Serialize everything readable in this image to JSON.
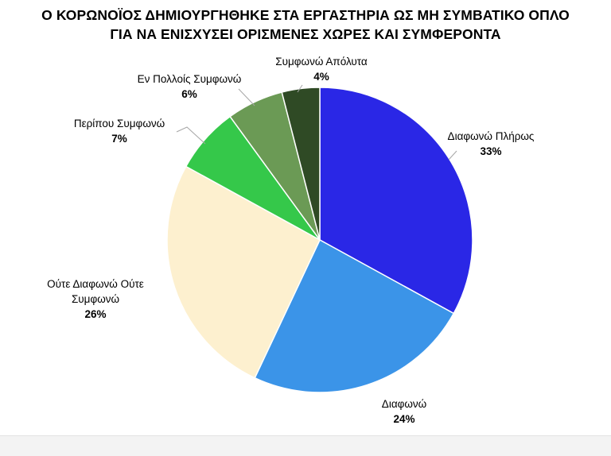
{
  "chart_data": {
    "type": "pie",
    "title_lines": [
      "Ο ΚΟΡΩΝΟΪΟΣ ΔΗΜΙΟΥΡΓΗΘΗΚΕ ΣΤΑ ΕΡΓΑΣΤΗΡΙΑ ΩΣ ΜΗ ΣΥΜΒΑΤΙΚΟ ΟΠΛΟ",
      "ΓΙΑ ΝΑ ΕΝΙΣΧΥΣΕΙ ΟΡΙΣΜΕΝΕΣ ΧΩΡΕΣ ΚΑΙ ΣΥΜΦΕΡΟΝΤΑ"
    ],
    "slices": [
      {
        "label_lines": [
          "Διαφωνώ Πλήρως"
        ],
        "value": 33,
        "value_label": "33%",
        "color": "#2a27e6"
      },
      {
        "label_lines": [
          "Διαφωνώ"
        ],
        "value": 24,
        "value_label": "24%",
        "color": "#3b94e8"
      },
      {
        "label_lines": [
          "Ούτε Διαφωνώ Ούτε",
          "Συμφωνώ"
        ],
        "value": 26,
        "value_label": "26%",
        "color": "#fdf0cf"
      },
      {
        "label_lines": [
          "Περίπου Συμφωνώ"
        ],
        "value": 7,
        "value_label": "7%",
        "color": "#35c84a"
      },
      {
        "label_lines": [
          "Εν Πολλοίς Συμφωνώ"
        ],
        "value": 6,
        "value_label": "6%",
        "color": "#6b9a55"
      },
      {
        "label_lines": [
          "Συμφωνώ Απόλυτα"
        ],
        "value": 4,
        "value_label": "4%",
        "color": "#2f4a25"
      }
    ],
    "legend": "none",
    "data_labels": "outside-with-leader-lines"
  }
}
